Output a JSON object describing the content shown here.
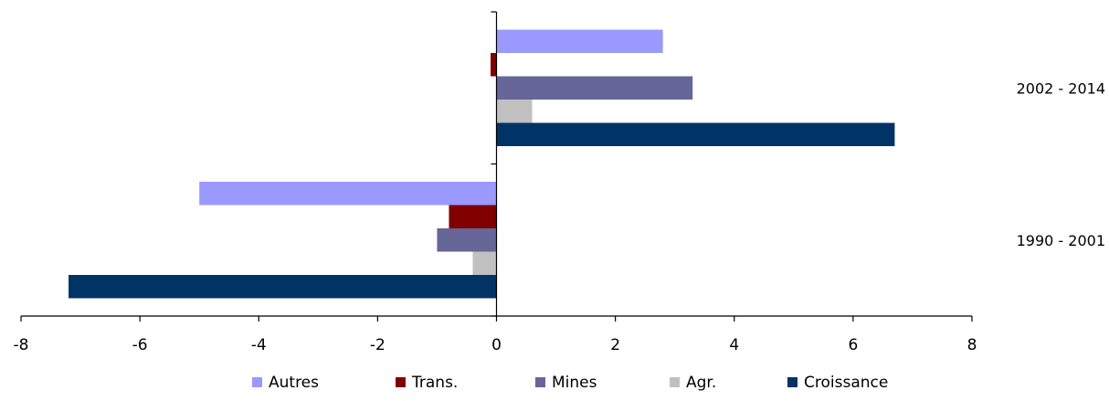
{
  "chart_data": {
    "type": "bar",
    "orientation": "horizontal",
    "categories": [
      "1990 - 2001",
      "2002 - 2014"
    ],
    "series": [
      {
        "name": "Autres",
        "color": "#9999ff",
        "values": [
          -5.0,
          2.8
        ]
      },
      {
        "name": "Trans.",
        "color": "#800000",
        "values": [
          -0.8,
          -0.1
        ]
      },
      {
        "name": "Mines",
        "color": "#666699",
        "values": [
          -1.0,
          3.3
        ]
      },
      {
        "name": "Agr.",
        "color": "#c0c0c0",
        "values": [
          -0.4,
          0.6
        ]
      },
      {
        "name": "Croissance",
        "color": "#003366",
        "values": [
          -7.2,
          6.7
        ]
      }
    ],
    "xlim": [
      -8,
      8
    ],
    "xticks": [
      "-8",
      "-6",
      "-4",
      "-2",
      "0",
      "2",
      "4",
      "6",
      "8"
    ],
    "legend_position": "bottom",
    "grid": false,
    "title": "",
    "xlabel": "",
    "ylabel": ""
  }
}
